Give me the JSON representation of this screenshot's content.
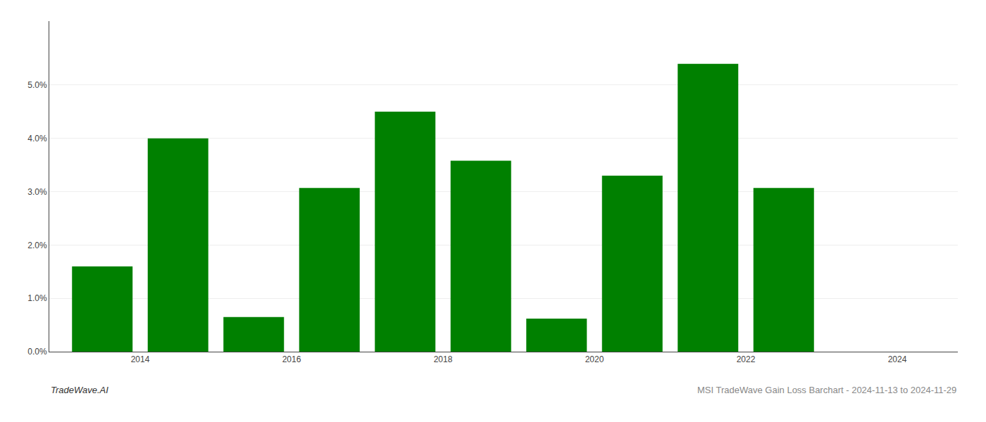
{
  "chart_data": {
    "type": "bar",
    "x": [
      2013.5,
      2014.5,
      2015.5,
      2016.5,
      2017.5,
      2018.5,
      2019.5,
      2020.5,
      2021.5,
      2022.5
    ],
    "values": [
      0.016,
      0.04,
      0.0065,
      0.0307,
      0.045,
      0.0358,
      0.0062,
      0.033,
      0.054,
      0.0307
    ],
    "color": "#008000",
    "xlim": [
      2012.8,
      2024.8
    ],
    "xticks": [
      2014,
      2016,
      2018,
      2020,
      2022,
      2024
    ],
    "ylim": [
      0,
      0.062
    ],
    "yticks": [
      {
        "value": 0.0,
        "label": "0.0%"
      },
      {
        "value": 0.01,
        "label": "1.0%"
      },
      {
        "value": 0.02,
        "label": "2.0%"
      },
      {
        "value": 0.03,
        "label": "3.0%"
      },
      {
        "value": 0.04,
        "label": "4.0%"
      },
      {
        "value": 0.05,
        "label": "5.0%"
      }
    ],
    "grid": true,
    "annotations": [
      "TradeWave.AI",
      "MSI TradeWave Gain Loss Barchart - 2024-11-13 to 2024-11-29"
    ]
  }
}
